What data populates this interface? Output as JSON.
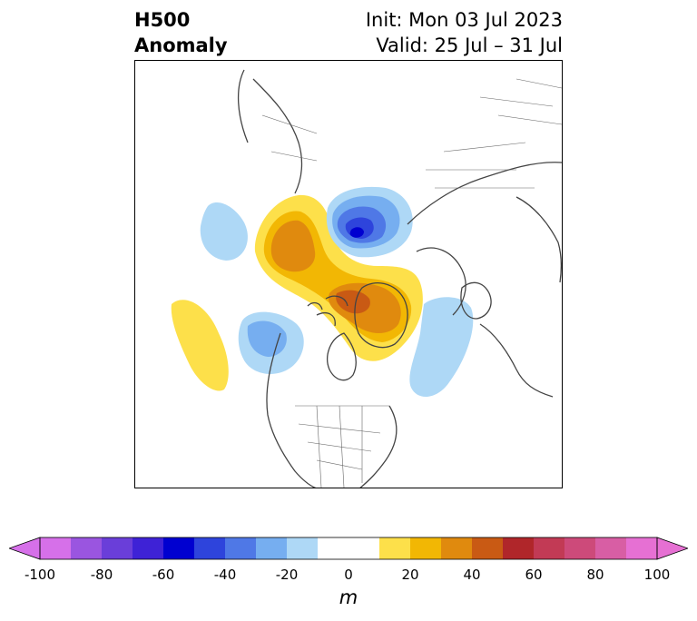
{
  "header": {
    "title_line1": "H500",
    "title_line2": "Anomaly",
    "init_label": "Init: Mon 03 Jul 2023",
    "valid_label": "Valid: 25 Jul – 31 Jul"
  },
  "colorbar": {
    "unit": "m",
    "ticks": [
      "-100",
      "-80",
      "-60",
      "-40",
      "-20",
      "0",
      "20",
      "40",
      "60",
      "80",
      "100"
    ],
    "bins": [
      {
        "color": "#d670e9"
      },
      {
        "color": "#9a55e0"
      },
      {
        "color": "#6a3ed9"
      },
      {
        "color": "#3e22d6"
      },
      {
        "color": "#0000d0"
      },
      {
        "color": "#2e44dc"
      },
      {
        "color": "#4f78e6"
      },
      {
        "color": "#76aef0"
      },
      {
        "color": "#aed8f6"
      },
      {
        "color": "#ffffff"
      },
      {
        "color": "#ffffff"
      },
      {
        "color": "#fde04a"
      },
      {
        "color": "#f2b704"
      },
      {
        "color": "#e08a0e"
      },
      {
        "color": "#c95a14"
      },
      {
        "color": "#b0262a"
      },
      {
        "color": "#c23a55"
      },
      {
        "color": "#cd4a7a"
      },
      {
        "color": "#d85ea4"
      },
      {
        "color": "#e670d3"
      }
    ],
    "under_color": "#d670e9",
    "over_color": "#e670d3"
  },
  "map": {
    "projection": "polar-stereographic",
    "anomaly_colors": {
      "neg20": "#aed8f6",
      "neg40": "#76aef0",
      "neg60": "#4f78e6",
      "neg80": "#2e44dc",
      "neg100": "#0000d0",
      "pos20": "#fde04a",
      "pos40": "#f2b704",
      "pos60": "#e08a0e",
      "pos80": "#c95a14"
    },
    "coastline_color": "#444444"
  }
}
